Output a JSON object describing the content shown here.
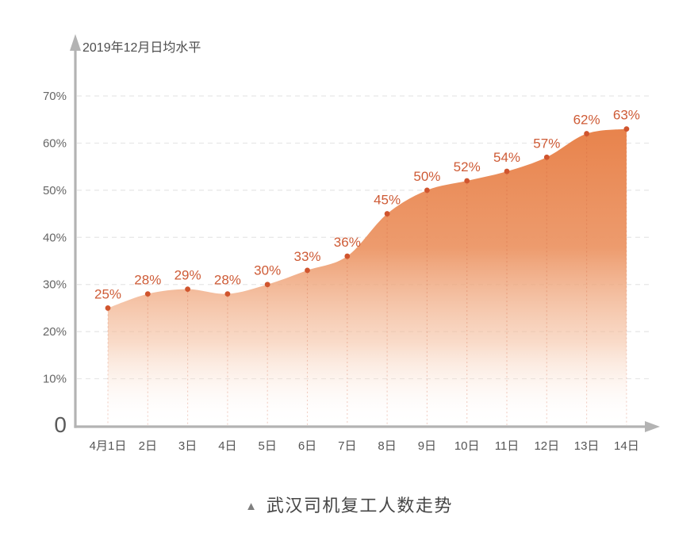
{
  "caption": {
    "marker": "▲",
    "text": "武汉司机复工人数走势"
  },
  "chart_data": {
    "type": "area",
    "title": "武汉司机复工人数走势",
    "ylabel": "2019年12月日均水平",
    "xlabel": "",
    "smooth": true,
    "grid": "horizontal-dashed",
    "legend": "none",
    "categories": [
      "4月1日",
      "2日",
      "3日",
      "4日",
      "5日",
      "6日",
      "7日",
      "8日",
      "9日",
      "10日",
      "11日",
      "12日",
      "13日",
      "14日"
    ],
    "values": [
      25,
      28,
      29,
      28,
      30,
      33,
      36,
      45,
      50,
      52,
      54,
      57,
      62,
      63
    ],
    "point_labels": [
      "25%",
      "28%",
      "29%",
      "28%",
      "30%",
      "33%",
      "36%",
      "45%",
      "50%",
      "52%",
      "54%",
      "57%",
      "62%",
      "63%"
    ],
    "yticks": [
      {
        "value": 70,
        "label": "70%"
      },
      {
        "value": 60,
        "label": "60%"
      },
      {
        "value": 50,
        "label": "50%"
      },
      {
        "value": 40,
        "label": "40%"
      },
      {
        "value": 30,
        "label": "30%"
      },
      {
        "value": 20,
        "label": "20%"
      },
      {
        "value": 10,
        "label": "10%"
      },
      {
        "value": 0,
        "label": "0"
      }
    ],
    "ylim": [
      0,
      75
    ]
  },
  "colors": {
    "area_top": "#E8834C",
    "area_mid": "#EC9666",
    "area_low": "#F4BD9C",
    "area_fade": "#FFFFFF",
    "dot": "#D0552E",
    "point_label": "#CE5B36",
    "axis": "#B3B3B3",
    "grid_line": "#E6E6E6",
    "guide_line": "rgba(206,91,54,0.28)",
    "y_tick_text": "#666666",
    "x_tick_text": "#555555",
    "axis_title_text": "#4D4D4D",
    "caption_text": "#464646",
    "caption_marker": "#7F7F7F"
  }
}
